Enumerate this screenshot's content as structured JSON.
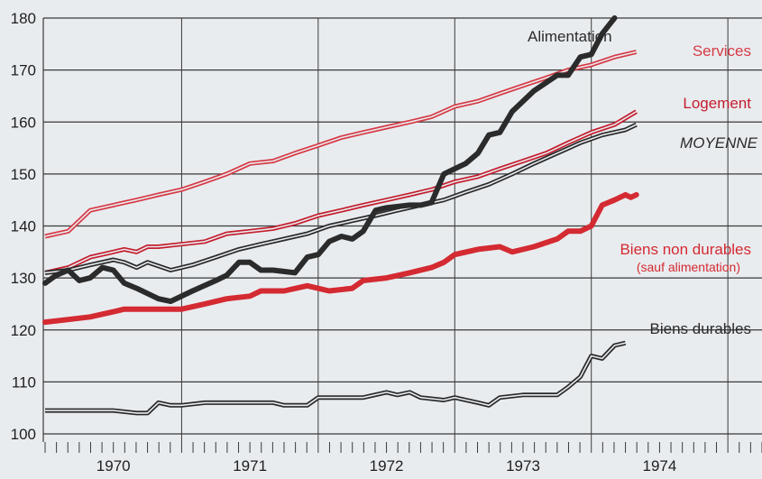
{
  "chart_data": {
    "type": "line",
    "title": "",
    "xlabel": "",
    "ylabel": "",
    "xlim": [
      1969.5,
      1974.75
    ],
    "ylim": [
      100,
      180
    ],
    "y_ticks": [
      100,
      110,
      120,
      130,
      140,
      150,
      160,
      170,
      180
    ],
    "x_ticks": [
      {
        "label": "1970",
        "value": 1970
      },
      {
        "label": "1971",
        "value": 1971
      },
      {
        "label": "1972",
        "value": 1972
      },
      {
        "label": "1973",
        "value": 1973
      },
      {
        "label": "1974",
        "value": 1974
      }
    ],
    "grid": true,
    "series": [
      {
        "name": "Services",
        "key": "services",
        "color": "#d63a45",
        "style": "double",
        "label": "Services",
        "points": [
          [
            1969.5,
            138
          ],
          [
            1969.67,
            139
          ],
          [
            1969.83,
            143
          ],
          [
            1970.0,
            144
          ],
          [
            1970.17,
            145
          ],
          [
            1970.33,
            146
          ],
          [
            1970.5,
            147
          ],
          [
            1970.67,
            148.5
          ],
          [
            1970.83,
            150
          ],
          [
            1971.0,
            152
          ],
          [
            1971.17,
            152.5
          ],
          [
            1971.33,
            154
          ],
          [
            1971.5,
            155.5
          ],
          [
            1971.67,
            157
          ],
          [
            1971.83,
            158
          ],
          [
            1972.0,
            159
          ],
          [
            1972.17,
            160
          ],
          [
            1972.33,
            161
          ],
          [
            1972.5,
            163
          ],
          [
            1972.67,
            164
          ],
          [
            1972.83,
            165.5
          ],
          [
            1973.0,
            167
          ],
          [
            1973.17,
            168.5
          ],
          [
            1973.33,
            170
          ],
          [
            1973.5,
            171
          ],
          [
            1973.67,
            172.5
          ],
          [
            1973.83,
            173.5
          ]
        ]
      },
      {
        "name": "Logement",
        "key": "logement",
        "color": "#c41e2e",
        "style": "double",
        "label": "Logement",
        "points": [
          [
            1969.5,
            131
          ],
          [
            1969.67,
            132
          ],
          [
            1969.83,
            134
          ],
          [
            1970.0,
            135
          ],
          [
            1970.08,
            135.5
          ],
          [
            1970.17,
            135
          ],
          [
            1970.25,
            136
          ],
          [
            1970.33,
            136
          ],
          [
            1970.5,
            136.5
          ],
          [
            1970.67,
            137
          ],
          [
            1970.83,
            138.5
          ],
          [
            1971.0,
            139
          ],
          [
            1971.17,
            139.5
          ],
          [
            1971.33,
            140.5
          ],
          [
            1971.5,
            142
          ],
          [
            1971.67,
            143
          ],
          [
            1971.83,
            144
          ],
          [
            1972.0,
            145
          ],
          [
            1972.17,
            146
          ],
          [
            1972.33,
            147
          ],
          [
            1972.5,
            148.5
          ],
          [
            1972.67,
            149.5
          ],
          [
            1972.83,
            151
          ],
          [
            1973.0,
            152.5
          ],
          [
            1973.17,
            154
          ],
          [
            1973.33,
            156
          ],
          [
            1973.5,
            158
          ],
          [
            1973.67,
            159.5
          ],
          [
            1973.83,
            162
          ]
        ]
      },
      {
        "name": "MOYENNE",
        "key": "moyenne",
        "color": "#2a2a2a",
        "style": "double",
        "label": "MOYENNE",
        "points": [
          [
            1969.5,
            131
          ],
          [
            1969.67,
            131.5
          ],
          [
            1969.83,
            132.5
          ],
          [
            1970.0,
            133.5
          ],
          [
            1970.08,
            133
          ],
          [
            1970.17,
            132
          ],
          [
            1970.25,
            133
          ],
          [
            1970.42,
            131.5
          ],
          [
            1970.58,
            132.5
          ],
          [
            1970.75,
            134
          ],
          [
            1970.92,
            135.5
          ],
          [
            1971.08,
            136.5
          ],
          [
            1971.25,
            137.5
          ],
          [
            1971.42,
            138.5
          ],
          [
            1971.58,
            140
          ],
          [
            1971.75,
            141
          ],
          [
            1971.92,
            142
          ],
          [
            1972.08,
            143
          ],
          [
            1972.25,
            144
          ],
          [
            1972.42,
            145
          ],
          [
            1972.58,
            146.5
          ],
          [
            1972.75,
            148
          ],
          [
            1972.92,
            150
          ],
          [
            1973.08,
            152
          ],
          [
            1973.25,
            154
          ],
          [
            1973.42,
            156
          ],
          [
            1973.58,
            157.5
          ],
          [
            1973.75,
            158.5
          ],
          [
            1973.83,
            159.5
          ]
        ]
      },
      {
        "name": "Biens non durables",
        "key": "nondurables",
        "color": "#d42a32",
        "style": "thick",
        "label": "Biens non durables",
        "sublabel": "(sauf alimentation)",
        "points": [
          [
            1969.5,
            121.5
          ],
          [
            1969.67,
            122
          ],
          [
            1969.83,
            122.5
          ],
          [
            1970.0,
            123.5
          ],
          [
            1970.08,
            124
          ],
          [
            1970.17,
            124
          ],
          [
            1970.33,
            124
          ],
          [
            1970.5,
            124
          ],
          [
            1970.67,
            125
          ],
          [
            1970.83,
            126
          ],
          [
            1971.0,
            126.5
          ],
          [
            1971.08,
            127.5
          ],
          [
            1971.25,
            127.5
          ],
          [
            1971.42,
            128.5
          ],
          [
            1971.58,
            127.5
          ],
          [
            1971.75,
            128
          ],
          [
            1971.83,
            129.5
          ],
          [
            1972.0,
            130
          ],
          [
            1972.17,
            131
          ],
          [
            1972.33,
            132
          ],
          [
            1972.42,
            133
          ],
          [
            1972.5,
            134.5
          ],
          [
            1972.67,
            135.5
          ],
          [
            1972.83,
            136
          ],
          [
            1972.92,
            135
          ],
          [
            1973.08,
            136
          ],
          [
            1973.25,
            137.5
          ],
          [
            1973.33,
            139
          ],
          [
            1973.42,
            139
          ],
          [
            1973.5,
            140
          ],
          [
            1973.58,
            144
          ],
          [
            1973.67,
            145
          ],
          [
            1973.75,
            146
          ],
          [
            1973.79,
            145.5
          ],
          [
            1973.83,
            146
          ]
        ]
      },
      {
        "name": "Alimentation",
        "key": "alimentation",
        "color": "#2b2b2b",
        "style": "thick",
        "label": "Alimentation",
        "points": [
          [
            1969.5,
            129
          ],
          [
            1969.58,
            130.5
          ],
          [
            1969.67,
            131.5
          ],
          [
            1969.75,
            129.5
          ],
          [
            1969.83,
            130
          ],
          [
            1969.92,
            132
          ],
          [
            1970.0,
            131.5
          ],
          [
            1970.08,
            129
          ],
          [
            1970.17,
            128
          ],
          [
            1970.33,
            126
          ],
          [
            1970.42,
            125.5
          ],
          [
            1970.58,
            127.5
          ],
          [
            1970.75,
            129.5
          ],
          [
            1970.83,
            130.5
          ],
          [
            1970.92,
            133
          ],
          [
            1971.0,
            133
          ],
          [
            1971.08,
            131.5
          ],
          [
            1971.17,
            131.5
          ],
          [
            1971.33,
            131
          ],
          [
            1971.42,
            134
          ],
          [
            1971.5,
            134.5
          ],
          [
            1971.58,
            137
          ],
          [
            1971.67,
            138
          ],
          [
            1971.75,
            137.5
          ],
          [
            1971.83,
            139
          ],
          [
            1971.92,
            143
          ],
          [
            1972.0,
            143.5
          ],
          [
            1972.17,
            144
          ],
          [
            1972.25,
            144
          ],
          [
            1972.33,
            144.5
          ],
          [
            1972.42,
            150
          ],
          [
            1972.58,
            152
          ],
          [
            1972.67,
            154
          ],
          [
            1972.75,
            157.5
          ],
          [
            1972.83,
            158
          ],
          [
            1972.92,
            162
          ],
          [
            1973.08,
            166
          ],
          [
            1973.25,
            169
          ],
          [
            1973.33,
            169
          ],
          [
            1973.42,
            172.5
          ],
          [
            1973.5,
            173
          ],
          [
            1973.58,
            177
          ],
          [
            1973.67,
            180
          ]
        ]
      },
      {
        "name": "Biens durables",
        "key": "durables",
        "color": "#2a2a2a",
        "style": "double",
        "label": "Biens durables",
        "points": [
          [
            1969.5,
            104.5
          ],
          [
            1969.67,
            104.5
          ],
          [
            1969.83,
            104.5
          ],
          [
            1970.0,
            104.5
          ],
          [
            1970.17,
            104
          ],
          [
            1970.25,
            104
          ],
          [
            1970.33,
            106
          ],
          [
            1970.42,
            105.5
          ],
          [
            1970.5,
            105.5
          ],
          [
            1970.67,
            106
          ],
          [
            1970.83,
            106
          ],
          [
            1971.0,
            106
          ],
          [
            1971.17,
            106
          ],
          [
            1971.25,
            105.5
          ],
          [
            1971.42,
            105.5
          ],
          [
            1971.5,
            107
          ],
          [
            1971.67,
            107
          ],
          [
            1971.83,
            107
          ],
          [
            1972.0,
            108
          ],
          [
            1972.08,
            107.5
          ],
          [
            1972.17,
            108
          ],
          [
            1972.25,
            107
          ],
          [
            1972.42,
            106.5
          ],
          [
            1972.5,
            107
          ],
          [
            1972.67,
            106
          ],
          [
            1972.75,
            105.5
          ],
          [
            1972.83,
            107
          ],
          [
            1973.0,
            107.5
          ],
          [
            1973.17,
            107.5
          ],
          [
            1973.25,
            107.5
          ],
          [
            1973.33,
            109
          ],
          [
            1973.42,
            111
          ],
          [
            1973.5,
            115
          ],
          [
            1973.58,
            114.5
          ],
          [
            1973.67,
            117
          ],
          [
            1973.75,
            117.5
          ]
        ]
      }
    ]
  }
}
